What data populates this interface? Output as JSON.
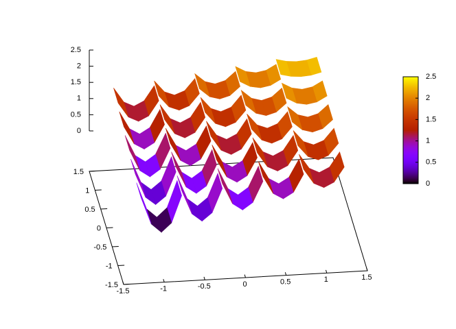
{
  "chart_data": {
    "type": "surface",
    "x": [
      -1.25,
      -1.125,
      -1,
      -0.875,
      -0.75,
      -0.75,
      -0.625,
      -0.5,
      -0.375,
      -0.25,
      -0.25,
      -0.125,
      0,
      0.125,
      0.25,
      0.25,
      0.375,
      0.5,
      0.625,
      0.75,
      0.75,
      0.875,
      1,
      1.125,
      1.25
    ],
    "rows": [
      {
        "y": [
          -1.25,
          -0.85
        ],
        "z": [
          1.1,
          0.275,
          0,
          0.275,
          1.1,
          1.25,
          0.519,
          0.275,
          0.519,
          1.25,
          1.4,
          0.763,
          0.55,
          0.763,
          1.4,
          1.55,
          1.006,
          0.825,
          1.006,
          1.55,
          1.7,
          1.25,
          1.1,
          1.25,
          1.7
        ]
      },
      {
        "y": [
          -0.75,
          -0.35
        ],
        "z": [
          1.25,
          0.519,
          0.275,
          0.519,
          1.25,
          1.4,
          0.763,
          0.55,
          0.763,
          1.4,
          1.55,
          1.006,
          0.825,
          1.006,
          1.55,
          1.7,
          1.25,
          1.1,
          1.25,
          1.7,
          1.85,
          1.494,
          1.375,
          1.494,
          1.85
        ]
      },
      {
        "y": [
          -0.25,
          0.15
        ],
        "z": [
          1.4,
          0.763,
          0.55,
          0.763,
          1.4,
          1.55,
          1.006,
          0.825,
          1.006,
          1.55,
          1.7,
          1.25,
          1.1,
          1.25,
          1.7,
          1.85,
          1.494,
          1.375,
          1.494,
          1.85,
          2,
          1.738,
          1.65,
          1.738,
          2
        ]
      },
      {
        "y": [
          0.25,
          0.65
        ],
        "z": [
          1.55,
          1.006,
          0.825,
          1.006,
          1.55,
          1.7,
          1.25,
          1.1,
          1.25,
          1.7,
          1.85,
          1.494,
          1.375,
          1.494,
          1.85,
          2,
          1.738,
          1.65,
          1.738,
          2,
          2.15,
          1.981,
          1.925,
          1.981,
          2.15
        ]
      },
      {
        "y": [
          0.75,
          1.15
        ],
        "z": [
          1.7,
          1.25,
          1.1,
          1.25,
          1.7,
          1.85,
          1.494,
          1.375,
          1.494,
          1.85,
          2,
          1.738,
          1.65,
          1.738,
          2,
          2.15,
          1.981,
          1.925,
          1.981,
          2.15,
          2.3,
          2.225,
          2.2,
          2.225,
          2.3
        ]
      }
    ],
    "xlim": [
      -1.5,
      1.5
    ],
    "xticks": [
      -1.5,
      -1,
      -0.5,
      0,
      0.5,
      1,
      1.5
    ],
    "ylim": [
      -1.5,
      1.5
    ],
    "yticks": [
      -1.5,
      -1,
      -0.5,
      0,
      0.5,
      1,
      1.5
    ],
    "zlim": [
      -1.25,
      2.5
    ],
    "zticks": [
      0,
      0.5,
      1,
      1.5,
      2,
      2.5
    ],
    "colorbar": {
      "range": [
        0,
        2.5
      ],
      "ticks": [
        0,
        0.5,
        1,
        1.5,
        2,
        2.5
      ]
    },
    "palette": "rgbformulae 7,5,15"
  }
}
